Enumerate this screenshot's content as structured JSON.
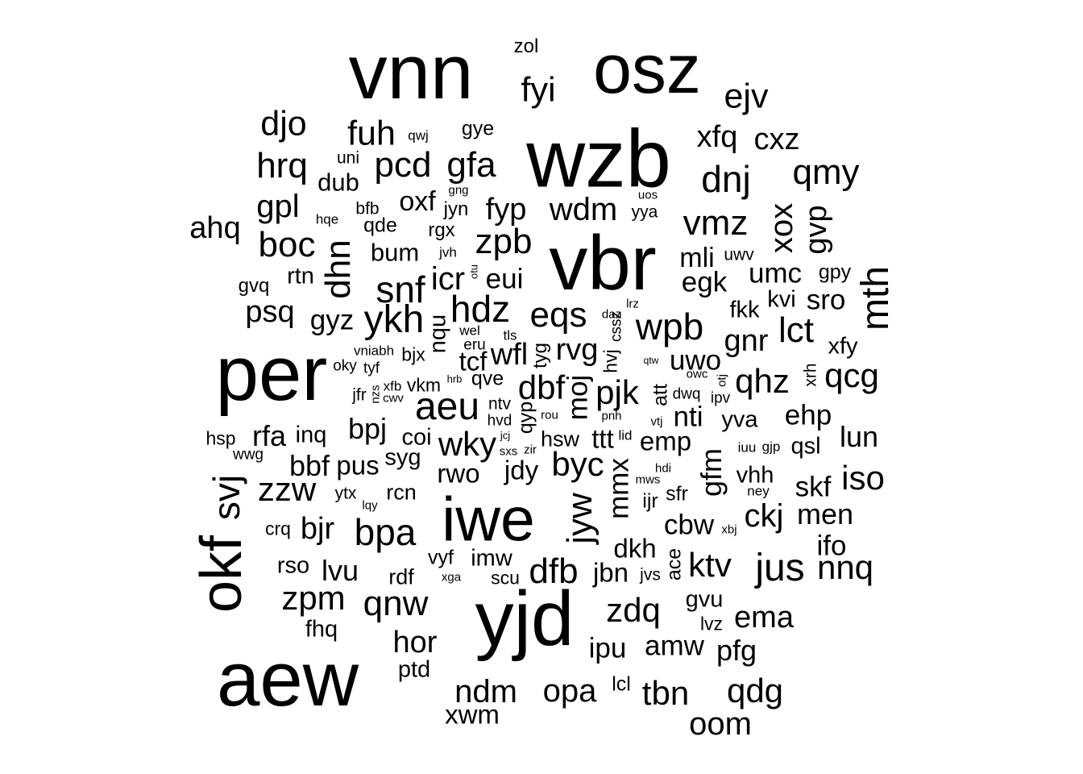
{
  "text_color": "#000000",
  "background": "#ffffff",
  "words": [
    {
      "text": "vnn",
      "weight": 10.0
    },
    {
      "text": "osz",
      "weight": 9.0
    },
    {
      "text": "zol",
      "weight": 2.5
    },
    {
      "text": "fyi",
      "weight": 4.5
    },
    {
      "text": "ejv",
      "weight": 4.5
    },
    {
      "text": "wzb",
      "weight": 10.5
    },
    {
      "text": "djo",
      "weight": 4.5
    },
    {
      "text": "fuh",
      "weight": 4.5
    },
    {
      "text": "qwj",
      "weight": 1.8
    },
    {
      "text": "gye",
      "weight": 2.6
    },
    {
      "text": "xfq",
      "weight": 4.0
    },
    {
      "text": "cxz",
      "weight": 4.0
    },
    {
      "text": "hrq",
      "weight": 4.6
    },
    {
      "text": "uni",
      "weight": 2.2
    },
    {
      "text": "dub",
      "weight": 3.2
    },
    {
      "text": "pcd",
      "weight": 4.6
    },
    {
      "text": "gfa",
      "weight": 4.6
    },
    {
      "text": "dnj",
      "weight": 4.8
    },
    {
      "text": "qmy",
      "weight": 4.6
    },
    {
      "text": "gpl",
      "weight": 4.2
    },
    {
      "text": "bfb",
      "weight": 2.2
    },
    {
      "text": "oxf",
      "weight": 3.5
    },
    {
      "text": "gng",
      "weight": 1.6
    },
    {
      "text": "jyn",
      "weight": 2.5
    },
    {
      "text": "fyp",
      "weight": 4.0
    },
    {
      "text": "wdm",
      "weight": 4.2
    },
    {
      "text": "uos",
      "weight": 1.6
    },
    {
      "text": "yya",
      "weight": 2.2
    },
    {
      "text": "vmz",
      "weight": 4.6
    },
    {
      "text": "xox",
      "weight": 4.2
    },
    {
      "text": "gvp",
      "weight": 4.0
    },
    {
      "text": "ahq",
      "weight": 4.0
    },
    {
      "text": "hqe",
      "weight": 1.8
    },
    {
      "text": "qde",
      "weight": 2.6
    },
    {
      "text": "rgx",
      "weight": 2.5
    },
    {
      "text": "zpb",
      "weight": 4.6
    },
    {
      "text": "vbr",
      "weight": 10.0
    },
    {
      "text": "boc",
      "weight": 4.6
    },
    {
      "text": "dhn",
      "weight": 4.6
    },
    {
      "text": "bum",
      "weight": 3.2
    },
    {
      "text": "jvh",
      "weight": 1.8
    },
    {
      "text": "mli",
      "weight": 3.5
    },
    {
      "text": "uwv",
      "weight": 2.2
    },
    {
      "text": "umc",
      "weight": 3.6
    },
    {
      "text": "gpy",
      "weight": 2.6
    },
    {
      "text": "rtn",
      "weight": 3.0
    },
    {
      "text": "icr",
      "weight": 4.2
    },
    {
      "text": "otu",
      "weight": 1.4
    },
    {
      "text": "eui",
      "weight": 3.6
    },
    {
      "text": "egk",
      "weight": 3.6
    },
    {
      "text": "mth",
      "weight": 5.0
    },
    {
      "text": "gvq",
      "weight": 2.5
    },
    {
      "text": "snf",
      "weight": 4.8
    },
    {
      "text": "lrz",
      "weight": 1.6
    },
    {
      "text": "kvi",
      "weight": 3.0
    },
    {
      "text": "sro",
      "weight": 3.6
    },
    {
      "text": "psq",
      "weight": 4.0
    },
    {
      "text": "hdz",
      "weight": 4.8
    },
    {
      "text": "eqs",
      "weight": 4.6
    },
    {
      "text": "fkk",
      "weight": 3.0
    },
    {
      "text": "gyz",
      "weight": 3.6
    },
    {
      "text": "ykh",
      "weight": 5.0
    },
    {
      "text": "daz",
      "weight": 1.6
    },
    {
      "text": "wpb",
      "weight": 4.8
    },
    {
      "text": "lct",
      "weight": 4.6
    },
    {
      "text": "nqu",
      "weight": 3.0
    },
    {
      "text": "wel",
      "weight": 1.8
    },
    {
      "text": "tls",
      "weight": 1.8
    },
    {
      "text": "cssz",
      "weight": 2.0
    },
    {
      "text": "gnr",
      "weight": 4.0
    },
    {
      "text": "xfy",
      "weight": 3.0
    },
    {
      "text": "per",
      "weight": 10.0
    },
    {
      "text": "vniabh",
      "weight": 1.8
    },
    {
      "text": "bjx",
      "weight": 2.4
    },
    {
      "text": "eru",
      "weight": 2.0
    },
    {
      "text": "wfl",
      "weight": 4.0
    },
    {
      "text": "tyg",
      "weight": 2.5
    },
    {
      "text": "rvg",
      "weight": 4.0
    },
    {
      "text": "qtw",
      "weight": 1.3
    },
    {
      "text": "uwo",
      "weight": 3.6
    },
    {
      "text": "xrh",
      "weight": 2.2
    },
    {
      "text": "oky",
      "weight": 2.0
    },
    {
      "text": "tyf",
      "weight": 2.0
    },
    {
      "text": "tcf",
      "weight": 3.4
    },
    {
      "text": "hvj",
      "weight": 2.4
    },
    {
      "text": "qhz",
      "weight": 4.4
    },
    {
      "text": "qcg",
      "weight": 4.4
    },
    {
      "text": "xfb",
      "weight": 1.8
    },
    {
      "text": "vkm",
      "weight": 2.4
    },
    {
      "text": "hrb",
      "weight": 1.4
    },
    {
      "text": "qve",
      "weight": 2.6
    },
    {
      "text": "owc",
      "weight": 1.6
    },
    {
      "text": "otj",
      "weight": 1.6
    },
    {
      "text": "jfr",
      "weight": 2.2
    },
    {
      "text": "nzs",
      "weight": 1.6
    },
    {
      "text": "cwv",
      "weight": 1.6
    },
    {
      "text": "dbf",
      "weight": 4.4
    },
    {
      "text": "moj",
      "weight": 3.6
    },
    {
      "text": "pjk",
      "weight": 4.4
    },
    {
      "text": "att",
      "weight": 2.6
    },
    {
      "text": "dwq",
      "weight": 2.0
    },
    {
      "text": "ipv",
      "weight": 2.0
    },
    {
      "text": "aeu",
      "weight": 5.0
    },
    {
      "text": "ntv",
      "weight": 2.2
    },
    {
      "text": "qyp",
      "weight": 2.6
    },
    {
      "text": "rou",
      "weight": 1.6
    },
    {
      "text": "pnh",
      "weight": 1.6
    },
    {
      "text": "vtj",
      "weight": 1.6
    },
    {
      "text": "nti",
      "weight": 3.6
    },
    {
      "text": "yva",
      "weight": 3.0
    },
    {
      "text": "ehp",
      "weight": 3.6
    },
    {
      "text": "bpj",
      "weight": 3.8
    },
    {
      "text": "hvd",
      "weight": 2.0
    },
    {
      "text": "jcj",
      "weight": 1.4
    },
    {
      "text": "hsp",
      "weight": 2.4
    },
    {
      "text": "rfa",
      "weight": 3.8
    },
    {
      "text": "inq",
      "weight": 3.0
    },
    {
      "text": "coi",
      "weight": 3.0
    },
    {
      "text": "wky",
      "weight": 4.4
    },
    {
      "text": "hsw",
      "weight": 2.8
    },
    {
      "text": "ttt",
      "weight": 3.4
    },
    {
      "text": "lid",
      "weight": 1.8
    },
    {
      "text": "emp",
      "weight": 3.4
    },
    {
      "text": "iuu",
      "weight": 1.8
    },
    {
      "text": "gjp",
      "weight": 1.8
    },
    {
      "text": "qsl",
      "weight": 3.0
    },
    {
      "text": "lun",
      "weight": 3.8
    },
    {
      "text": "wwg",
      "weight": 2.0
    },
    {
      "text": "syg",
      "weight": 3.0
    },
    {
      "text": "sxs",
      "weight": 1.6
    },
    {
      "text": "zir",
      "weight": 1.6
    },
    {
      "text": "jdy",
      "weight": 3.4
    },
    {
      "text": "byc",
      "weight": 4.4
    },
    {
      "text": "mmx",
      "weight": 3.6
    },
    {
      "text": "hdi",
      "weight": 1.6
    },
    {
      "text": "gfm",
      "weight": 3.8
    },
    {
      "text": "vhh",
      "weight": 3.0
    },
    {
      "text": "bbf",
      "weight": 3.8
    },
    {
      "text": "pus",
      "weight": 3.4
    },
    {
      "text": "rwo",
      "weight": 3.4
    },
    {
      "text": "mws",
      "weight": 1.6
    },
    {
      "text": "ney",
      "weight": 1.8
    },
    {
      "text": "skf",
      "weight": 3.6
    },
    {
      "text": "iso",
      "weight": 4.4
    },
    {
      "text": "svj",
      "weight": 4.8
    },
    {
      "text": "zzw",
      "weight": 4.4
    },
    {
      "text": "ytx",
      "weight": 2.2
    },
    {
      "text": "lqy",
      "weight": 1.6
    },
    {
      "text": "rcn",
      "weight": 2.8
    },
    {
      "text": "iwe",
      "weight": 8.0
    },
    {
      "text": "jyw",
      "weight": 4.6
    },
    {
      "text": "ijr",
      "weight": 2.6
    },
    {
      "text": "sfr",
      "weight": 2.6
    },
    {
      "text": "ckj",
      "weight": 4.2
    },
    {
      "text": "men",
      "weight": 3.8
    },
    {
      "text": "crq",
      "weight": 2.4
    },
    {
      "text": "bjr",
      "weight": 4.0
    },
    {
      "text": "bpa",
      "weight": 4.8
    },
    {
      "text": "cbw",
      "weight": 3.6
    },
    {
      "text": "xbj",
      "weight": 1.6
    },
    {
      "text": "okf",
      "weight": 7.5
    },
    {
      "text": "ifo",
      "weight": 3.6
    },
    {
      "text": "dkh",
      "weight": 3.4
    },
    {
      "text": "vyf",
      "weight": 2.6
    },
    {
      "text": "imw",
      "weight": 3.0
    },
    {
      "text": "ace",
      "weight": 2.6
    },
    {
      "text": "ktv",
      "weight": 4.4
    },
    {
      "text": "jus",
      "weight": 5.0
    },
    {
      "text": "nnq",
      "weight": 4.4
    },
    {
      "text": "rso",
      "weight": 3.0
    },
    {
      "text": "lvu",
      "weight": 3.8
    },
    {
      "text": "rdf",
      "weight": 2.8
    },
    {
      "text": "xga",
      "weight": 1.6
    },
    {
      "text": "scu",
      "weight": 2.4
    },
    {
      "text": "dfb",
      "weight": 4.6
    },
    {
      "text": "jbn",
      "weight": 3.4
    },
    {
      "text": "jvs",
      "weight": 2.2
    },
    {
      "text": "zpm",
      "weight": 4.4
    },
    {
      "text": "qnw",
      "weight": 4.6
    },
    {
      "text": "zdq",
      "weight": 4.4
    },
    {
      "text": "gvu",
      "weight": 3.0
    },
    {
      "text": "fhq",
      "weight": 3.0
    },
    {
      "text": "yjd",
      "weight": 10.0
    },
    {
      "text": "lvz",
      "weight": 2.4
    },
    {
      "text": "ema",
      "weight": 4.0
    },
    {
      "text": "hor",
      "weight": 4.0
    },
    {
      "text": "amw",
      "weight": 3.6
    },
    {
      "text": "ipu",
      "weight": 3.6
    },
    {
      "text": "pfg",
      "weight": 3.8
    },
    {
      "text": "aew",
      "weight": 10.0
    },
    {
      "text": "ptd",
      "weight": 3.0
    },
    {
      "text": "ndm",
      "weight": 4.2
    },
    {
      "text": "opa",
      "weight": 4.2
    },
    {
      "text": "lcl",
      "weight": 2.6
    },
    {
      "text": "tbn",
      "weight": 4.4
    },
    {
      "text": "qdg",
      "weight": 4.4
    },
    {
      "text": "xwm",
      "weight": 3.4
    },
    {
      "text": "oom",
      "weight": 4.2
    }
  ]
}
